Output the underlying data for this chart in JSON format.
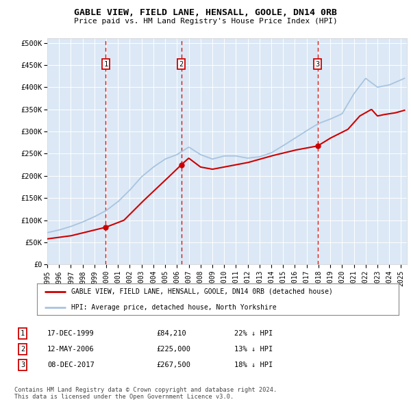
{
  "title": "GABLE VIEW, FIELD LANE, HENSALL, GOOLE, DN14 0RB",
  "subtitle": "Price paid vs. HM Land Registry's House Price Index (HPI)",
  "x_start": 1995.0,
  "x_end": 2025.5,
  "y_ticks": [
    0,
    50000,
    100000,
    150000,
    200000,
    250000,
    300000,
    350000,
    400000,
    450000,
    500000
  ],
  "y_labels": [
    "£0",
    "£50K",
    "£100K",
    "£150K",
    "£200K",
    "£250K",
    "£300K",
    "£350K",
    "£400K",
    "£450K",
    "£500K"
  ],
  "sale_dates": [
    1999.96,
    2006.36,
    2017.93
  ],
  "sale_prices": [
    84210,
    225000,
    267500
  ],
  "sale_labels": [
    "1",
    "2",
    "3"
  ],
  "hpi_line_color": "#a8c4e0",
  "price_line_color": "#cc0000",
  "dashed_line_color": "#cc0000",
  "fig_bg_color": "#ffffff",
  "plot_bg_color": "#dce8f5",
  "legend_label_red": "GABLE VIEW, FIELD LANE, HENSALL, GOOLE, DN14 0RB (detached house)",
  "legend_label_blue": "HPI: Average price, detached house, North Yorkshire",
  "table_rows": [
    [
      "1",
      "17-DEC-1999",
      "£84,210",
      "22% ↓ HPI"
    ],
    [
      "2",
      "12-MAY-2006",
      "£225,000",
      "13% ↓ HPI"
    ],
    [
      "3",
      "08-DEC-2017",
      "£267,500",
      "18% ↓ HPI"
    ]
  ],
  "footnote": "Contains HM Land Registry data © Crown copyright and database right 2024.\nThis data is licensed under the Open Government Licence v3.0.",
  "x_tick_years": [
    1995,
    1996,
    1997,
    1998,
    1999,
    2000,
    2001,
    2002,
    2003,
    2004,
    2005,
    2006,
    2007,
    2008,
    2009,
    2010,
    2011,
    2012,
    2013,
    2014,
    2015,
    2016,
    2017,
    2018,
    2019,
    2020,
    2021,
    2022,
    2023,
    2024,
    2025
  ],
  "hpi_anchors_x": [
    1995,
    1996,
    1997,
    1998,
    1999,
    2000,
    2001,
    2002,
    2003,
    2004,
    2005,
    2006,
    2007,
    2008,
    2009,
    2010,
    2011,
    2012,
    2013,
    2014,
    2015,
    2016,
    2017,
    2018,
    2019,
    2020,
    2021,
    2022,
    2023,
    2024,
    2025.3
  ],
  "hpi_anchors_y": [
    72000,
    78000,
    86000,
    96000,
    108000,
    122000,
    142000,
    168000,
    198000,
    220000,
    238000,
    248000,
    265000,
    248000,
    238000,
    245000,
    245000,
    240000,
    243000,
    252000,
    268000,
    285000,
    302000,
    318000,
    328000,
    340000,
    385000,
    420000,
    400000,
    405000,
    420000
  ],
  "price_anchors_x": [
    1995.0,
    1997.0,
    1999.96,
    2001.5,
    2003.0,
    2005.0,
    2006.36,
    2007.0,
    2008.0,
    2009.0,
    2010.0,
    2012.0,
    2014.0,
    2016.0,
    2017.93,
    2019.0,
    2020.5,
    2021.5,
    2022.5,
    2023.0,
    2023.5,
    2024.5,
    2025.3
  ],
  "price_anchors_y": [
    58000,
    65000,
    84210,
    100000,
    140000,
    190000,
    225000,
    240000,
    220000,
    215000,
    220000,
    230000,
    245000,
    258000,
    267500,
    285000,
    305000,
    335000,
    350000,
    335000,
    338000,
    342000,
    348000
  ]
}
